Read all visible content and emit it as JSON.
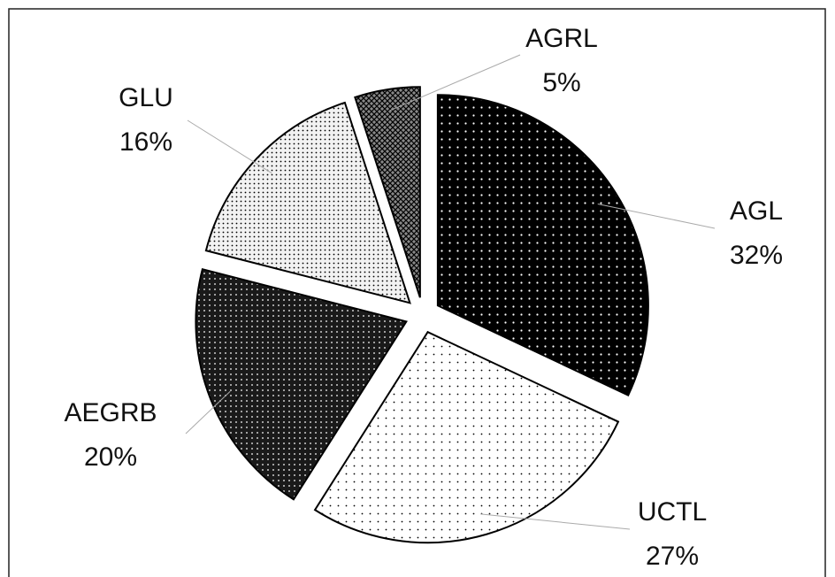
{
  "chart_data": {
    "type": "pie",
    "categories": [
      "AGL",
      "UCTL",
      "AEGRB",
      "GLU",
      "AGRL"
    ],
    "values": [
      32,
      27,
      20,
      16,
      5
    ],
    "value_labels": [
      "32%",
      "27%",
      "20%",
      "16%",
      "5%"
    ],
    "colors": [
      "#000000",
      "#ffffff",
      "#1a1a1a",
      "#f2f2f2",
      "#888888"
    ]
  }
}
